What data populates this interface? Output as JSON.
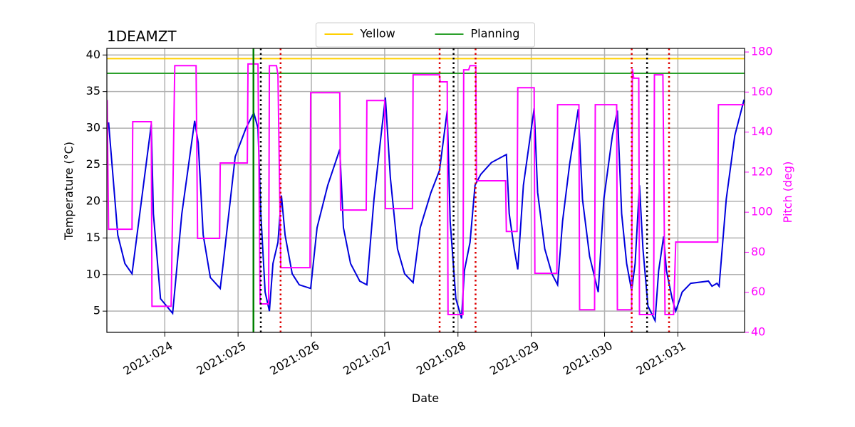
{
  "chart_data": {
    "type": "line",
    "title": "1DEAMZT",
    "xlabel": "Date",
    "ylabel": "Temperature (°C)",
    "y2label": "Pitch (deg)",
    "xlim": [
      23.21,
      31.91
    ],
    "ylim": [
      2.1,
      40.9
    ],
    "y2lim": [
      40,
      181.8
    ],
    "xticks": [
      {
        "value": 24,
        "label": "2021:024"
      },
      {
        "value": 25,
        "label": "2021:025"
      },
      {
        "value": 26,
        "label": "2021:026"
      },
      {
        "value": 27,
        "label": "2021:027"
      },
      {
        "value": 28,
        "label": "2021:028"
      },
      {
        "value": 29,
        "label": "2021:029"
      },
      {
        "value": 30,
        "label": "2021:030"
      },
      {
        "value": 31,
        "label": "2021:031"
      }
    ],
    "yticks": [
      5,
      10,
      15,
      20,
      25,
      30,
      35,
      40
    ],
    "y2ticks": [
      40,
      60,
      80,
      100,
      120,
      140,
      160,
      180
    ],
    "y2color": "#ff00ff",
    "grid": true,
    "legend": "upper center",
    "hlines": [
      {
        "name": "Yellow",
        "value": 39.5,
        "color": "#ffd000"
      },
      {
        "name": "Planning",
        "value": 37.5,
        "color": "#2ca02c"
      }
    ],
    "vlines": [
      {
        "x": 25.21,
        "color": "#008000",
        "style": "solid"
      },
      {
        "x": 25.31,
        "color": "#000000",
        "style": "dotted"
      },
      {
        "x": 27.94,
        "color": "#000000",
        "style": "dotted"
      },
      {
        "x": 30.58,
        "color": "#000000",
        "style": "dotted"
      },
      {
        "x": 25.58,
        "color": "#dd0000",
        "style": "dotted"
      },
      {
        "x": 27.75,
        "color": "#dd0000",
        "style": "dotted"
      },
      {
        "x": 28.24,
        "color": "#dd0000",
        "style": "dotted"
      },
      {
        "x": 30.37,
        "color": "#dd0000",
        "style": "dotted"
      },
      {
        "x": 30.88,
        "color": "#dd0000",
        "style": "dotted"
      }
    ],
    "series": [
      {
        "color": "#0000dd",
        "x": [
          23.233,
          23.359,
          23.456,
          23.553,
          23.816,
          23.845,
          23.942,
          24.107,
          24.233,
          24.408,
          24.456,
          24.524,
          24.621,
          24.757,
          24.786,
          24.961,
          25.107,
          25.214,
          25.272,
          25.311,
          25.369,
          25.427,
          25.476,
          25.544,
          25.592,
          25.641,
          25.738,
          25.835,
          25.99,
          26.078,
          26.223,
          26.388,
          26.437,
          26.534,
          26.66,
          26.757,
          26.854,
          26.951,
          27.01,
          27.078,
          27.175,
          27.272,
          27.388,
          27.485,
          27.631,
          27.748,
          27.854,
          27.893,
          27.971,
          28.049,
          28.087,
          28.165,
          28.233,
          28.311,
          28.456,
          28.66,
          28.699,
          28.767,
          28.816,
          28.893,
          29.039,
          29.087,
          29.184,
          29.282,
          29.359,
          29.427,
          29.524,
          29.641,
          29.699,
          29.796,
          29.913,
          29.99,
          30.107,
          30.175,
          30.233,
          30.301,
          30.369,
          30.417,
          30.476,
          30.524,
          30.592,
          30.689,
          30.738,
          30.806,
          30.845,
          30.922,
          30.971,
          31.058,
          31.175,
          31.417,
          31.466,
          31.534,
          31.563,
          31.66,
          31.777,
          31.903
        ],
        "values": [
          30.8,
          15.4,
          11.5,
          10.1,
          30.5,
          18.3,
          6.7,
          4.7,
          18.3,
          31.0,
          28.0,
          15.4,
          9.6,
          8.1,
          10.5,
          26.1,
          30.0,
          32.1,
          30.0,
          18.3,
          7.6,
          5.0,
          11.5,
          14.4,
          20.8,
          15.4,
          10.1,
          8.6,
          8.1,
          16.4,
          22.2,
          27.1,
          16.4,
          11.5,
          9.1,
          8.6,
          20.3,
          29.0,
          34.2,
          23.2,
          13.5,
          10.1,
          8.9,
          16.4,
          21.2,
          24.2,
          32.4,
          17.3,
          6.7,
          4.0,
          10.5,
          14.4,
          22.2,
          23.7,
          25.3,
          26.4,
          18.3,
          13.5,
          10.7,
          22.2,
          32.7,
          21.2,
          13.5,
          10.1,
          8.6,
          17.3,
          25.1,
          32.6,
          20.3,
          12.5,
          7.6,
          20.3,
          29.0,
          32.4,
          18.3,
          11.5,
          7.8,
          11.5,
          22.2,
          13.5,
          5.7,
          3.7,
          10.5,
          15.2,
          10.5,
          6.7,
          5.0,
          7.6,
          8.8,
          9.1,
          8.4,
          8.8,
          8.4,
          20.3,
          29.0,
          33.9
        ]
      },
      {
        "color": "#ff00ff",
        "axis": "y2",
        "x": [
          23.214,
          23.233,
          23.553,
          23.563,
          23.816,
          23.825,
          24.087,
          24.136,
          24.427,
          24.447,
          24.748,
          24.757,
          25.126,
          25.136,
          25.272,
          25.301,
          25.417,
          25.427,
          25.524,
          25.544,
          25.583,
          25.981,
          25.99,
          26.388,
          26.398,
          26.748,
          26.757,
          27.0,
          27.01,
          27.379,
          27.388,
          27.748,
          27.757,
          27.854,
          27.864,
          28.068,
          28.078,
          28.146,
          28.165,
          28.243,
          28.252,
          28.65,
          28.66,
          28.806,
          28.816,
          29.039,
          29.049,
          29.35,
          29.359,
          29.65,
          29.66,
          29.864,
          29.874,
          30.165,
          30.175,
          30.369,
          30.379,
          30.398,
          30.466,
          30.476,
          30.67,
          30.68,
          30.796,
          30.825,
          30.942,
          30.971,
          31.544,
          31.553,
          31.903
        ],
        "values": [
          156,
          91.5,
          91.5,
          145.2,
          145.2,
          53,
          53,
          173.2,
          173.2,
          86.9,
          86.9,
          124.6,
          124.6,
          174,
          174,
          54.2,
          54.2,
          173.2,
          173.2,
          168.6,
          72.3,
          72.3,
          159.7,
          159.7,
          101.1,
          101.1,
          155.8,
          155.8,
          101.8,
          101.8,
          168.6,
          168.6,
          165.1,
          165.1,
          48.9,
          48.9,
          171.1,
          171.1,
          173.2,
          173.2,
          115.7,
          115.7,
          90.4,
          90.4,
          162.2,
          162.2,
          69.5,
          69.5,
          153.7,
          153.7,
          51.3,
          51.3,
          153.7,
          153.7,
          51.3,
          51.3,
          171.5,
          166.9,
          166.9,
          48.9,
          48.9,
          168.6,
          168.6,
          48.9,
          48.9,
          85.1,
          85.1,
          153.7,
          153.7
        ]
      }
    ]
  }
}
